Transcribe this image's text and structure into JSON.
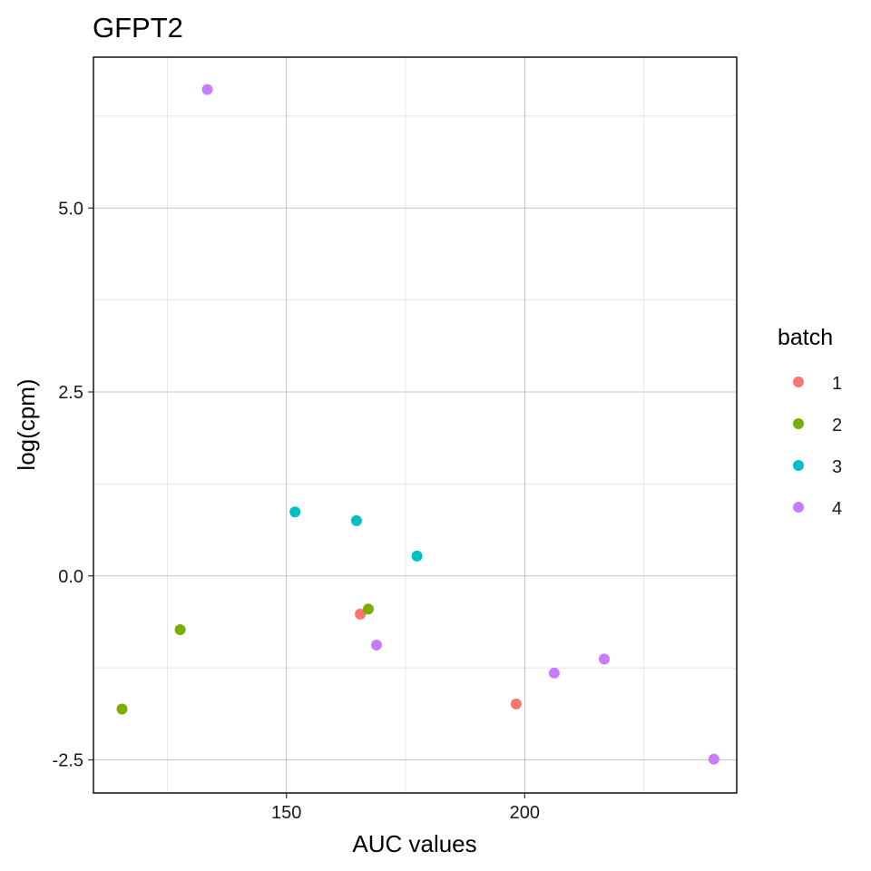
{
  "chart_data": {
    "type": "scatter",
    "title": "GFPT2",
    "xlabel": "AUC values",
    "ylabel": "log(cpm)",
    "xlim": [
      109.5,
      244.5
    ],
    "ylim": [
      -2.95,
      7.05
    ],
    "x_major_ticks": [
      150,
      200
    ],
    "x_minor_ticks": [
      125,
      175,
      225
    ],
    "y_major_ticks": [
      -2.5,
      0.0,
      2.5,
      5.0
    ],
    "y_minor_ticks": [
      -1.25,
      1.25,
      3.75,
      6.25
    ],
    "x_tick_labels": [
      "150",
      "200"
    ],
    "y_tick_labels": [
      "-2.5",
      "0.0",
      "2.5",
      "5.0"
    ],
    "grid": true,
    "legend": {
      "title": "batch",
      "position": "right",
      "entries": [
        "1",
        "2",
        "3",
        "4"
      ]
    },
    "series": [
      {
        "name": "1",
        "color": "#F8766D",
        "points": [
          [
            165.5,
            -0.52
          ],
          [
            198.2,
            -1.74
          ]
        ]
      },
      {
        "name": "2",
        "color": "#7CAE00",
        "points": [
          [
            115.5,
            -1.81
          ],
          [
            127.7,
            -0.73
          ],
          [
            167.2,
            -0.45
          ]
        ]
      },
      {
        "name": "3",
        "color": "#00BFC4",
        "points": [
          [
            151.8,
            0.87
          ],
          [
            164.7,
            0.75
          ],
          [
            177.4,
            0.27
          ]
        ]
      },
      {
        "name": "4",
        "color": "#C77CFF",
        "points": [
          [
            133.4,
            6.61
          ],
          [
            168.9,
            -0.94
          ],
          [
            206.2,
            -1.32
          ],
          [
            216.7,
            -1.13
          ],
          [
            239.7,
            -2.49
          ]
        ]
      }
    ]
  }
}
